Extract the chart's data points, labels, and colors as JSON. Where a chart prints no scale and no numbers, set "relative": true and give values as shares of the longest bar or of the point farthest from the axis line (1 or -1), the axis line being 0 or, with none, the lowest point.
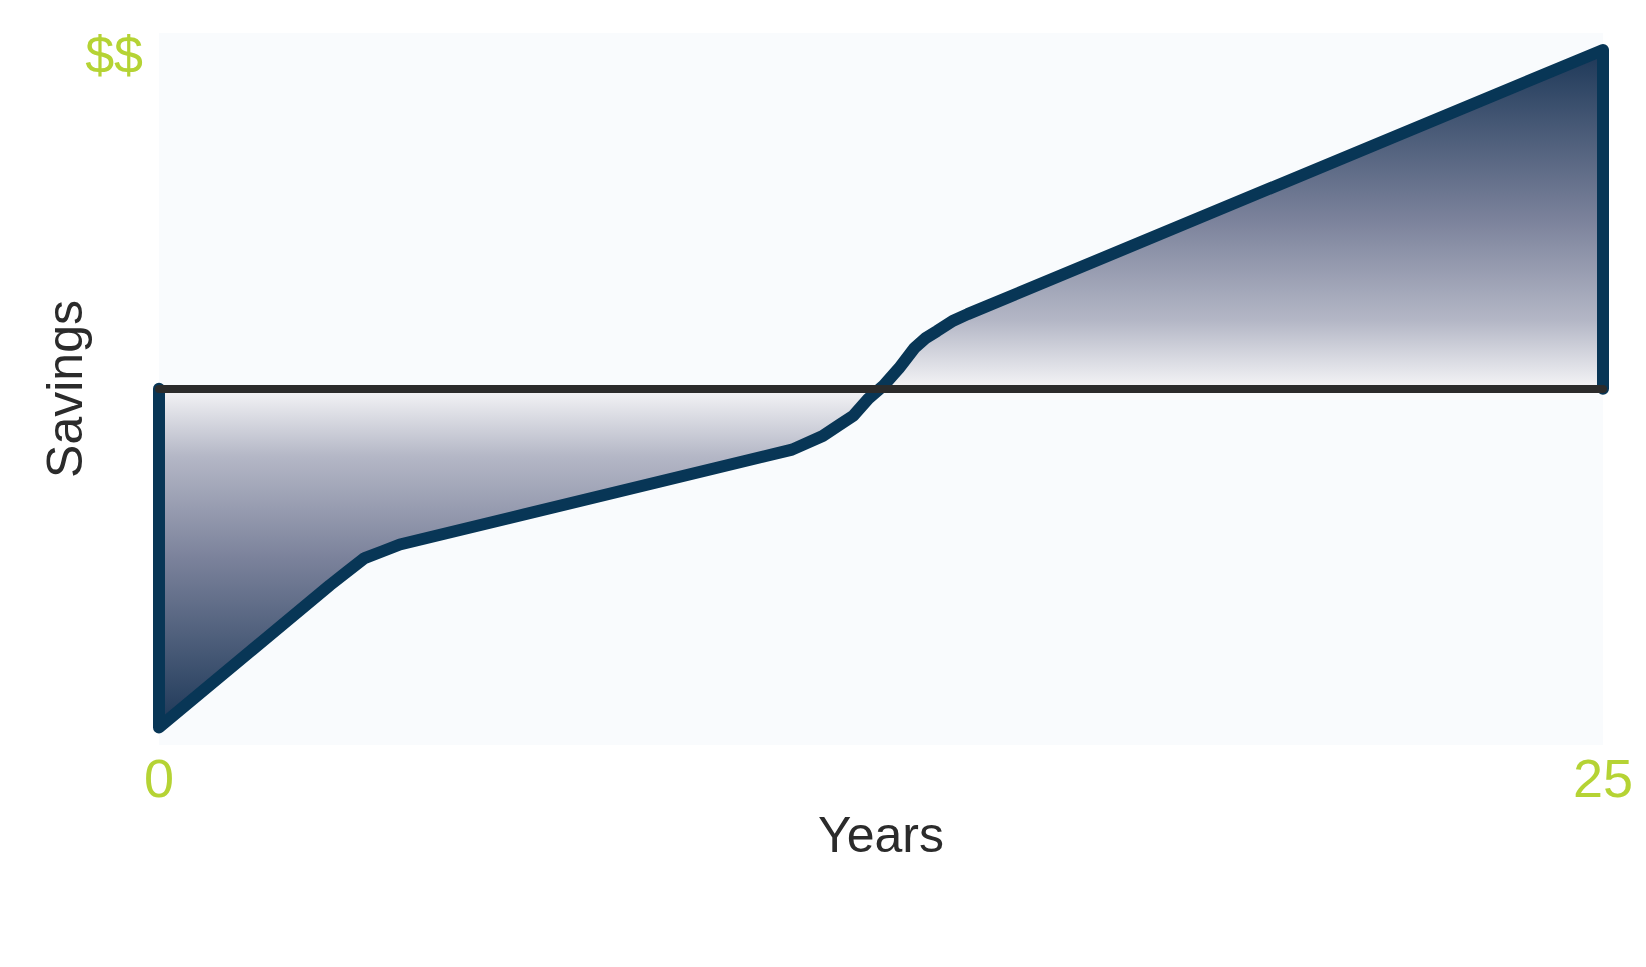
{
  "chart_data": {
    "type": "area",
    "xlabel": "Years",
    "ylabel": "Savings",
    "annotations": [
      "$$"
    ],
    "x": [
      0,
      0,
      2.96,
      3.26,
      3.56,
      3.87,
      4.17,
      10.96,
      11.49,
      11.75,
      12.02,
      12.28,
      12.55,
      12.81,
      13.08,
      13.28,
      13.47,
      13.74,
      14.0,
      25,
      25
    ],
    "values": [
      0,
      -1,
      -0.58,
      -0.54,
      -0.5,
      -0.48,
      -0.46,
      -0.18,
      -0.14,
      -0.11,
      -0.08,
      -0.03,
      0.01,
      0.06,
      0.12,
      0.15,
      0.17,
      0.2,
      0.22,
      1,
      0
    ],
    "color": "#083656",
    "relative": true,
    "xlim": [
      0,
      25
    ],
    "xticks": [
      0,
      25
    ]
  }
}
